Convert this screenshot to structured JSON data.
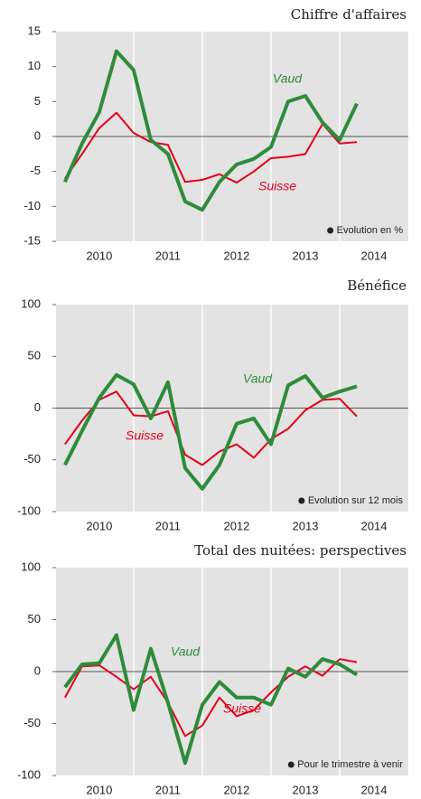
{
  "chart_data": [
    {
      "type": "line",
      "title": "Chiffre d'affaires",
      "x": [
        2010,
        2010.25,
        2010.5,
        2010.75,
        2011,
        2011.25,
        2011.5,
        2011.75,
        2012,
        2012.25,
        2012.5,
        2012.75,
        2013,
        2013.25,
        2013.5,
        2013.75,
        2014,
        2014.25
      ],
      "series": [
        {
          "name": "Vaud",
          "color": "#2e8b3a",
          "values": [
            -6.5,
            -1,
            3.5,
            12.2,
            9.5,
            -0.5,
            -2.5,
            -9.3,
            -10.5,
            -6.5,
            -4,
            -3.2,
            -1.5,
            5,
            5.8,
            2,
            -0.5,
            4.7
          ]
        },
        {
          "name": "Suisse",
          "color": "#e3001b",
          "values": [
            -6,
            -2.5,
            1.2,
            3.4,
            0.5,
            -0.8,
            -1.2,
            -6.5,
            -6.2,
            -5.4,
            -6.6,
            -5,
            -3.1,
            -2.9,
            -2.5,
            1.8,
            -1,
            -0.8
          ]
        }
      ],
      "ylim": [
        -15,
        15
      ],
      "yticks": [
        -15,
        -10,
        -5,
        0,
        5,
        10,
        15
      ],
      "xlim": [
        2009.87,
        2015
      ],
      "xticks": [
        {
          "value": 2010.5,
          "label": "2010"
        },
        {
          "value": 2011.5,
          "label": "2011"
        },
        {
          "value": 2012.5,
          "label": "2012"
        },
        {
          "value": 2013.5,
          "label": "2013"
        },
        {
          "value": 2014.5,
          "label": "2014"
        }
      ],
      "xgrid": [
        2011,
        2012,
        2013,
        2014
      ],
      "note": "Evolution en %"
    },
    {
      "type": "line",
      "title": "Bénéfice",
      "x": [
        2010,
        2010.25,
        2010.5,
        2010.75,
        2011,
        2011.25,
        2011.5,
        2011.75,
        2012,
        2012.25,
        2012.5,
        2012.75,
        2013,
        2013.25,
        2013.5,
        2013.75,
        2014,
        2014.25
      ],
      "series": [
        {
          "name": "Vaud",
          "color": "#2e8b3a",
          "values": [
            -55,
            -22,
            10,
            32,
            23,
            -10,
            25,
            -58,
            -78,
            -55,
            -15,
            -10,
            -35,
            22,
            31,
            10,
            16,
            21
          ]
        },
        {
          "name": "Suisse",
          "color": "#e3001b",
          "values": [
            -35,
            -12,
            8,
            16,
            -7,
            -8,
            -3,
            -45,
            -55,
            -42,
            -35,
            -48,
            -30,
            -20,
            -2,
            8,
            9,
            -8
          ]
        }
      ],
      "ylim": [
        -100,
        100
      ],
      "yticks": [
        -100,
        -50,
        0,
        50,
        100
      ],
      "xlim": [
        2009.87,
        2015
      ],
      "xticks": [
        {
          "value": 2010.5,
          "label": "2010"
        },
        {
          "value": 2011.5,
          "label": "2011"
        },
        {
          "value": 2012.5,
          "label": "2012"
        },
        {
          "value": 2013.5,
          "label": "2013"
        },
        {
          "value": 2014.5,
          "label": "2014"
        }
      ],
      "xgrid": [
        2011,
        2012,
        2013,
        2014
      ],
      "note": "Evolution sur 12 mois"
    },
    {
      "type": "line",
      "title": "Total des nuitées: perspectives",
      "x": [
        2010,
        2010.25,
        2010.5,
        2010.75,
        2011,
        2011.25,
        2011.5,
        2011.75,
        2012,
        2012.25,
        2012.5,
        2012.75,
        2013,
        2013.25,
        2013.5,
        2013.75,
        2014,
        2014.25
      ],
      "series": [
        {
          "name": "Vaud",
          "color": "#2e8b3a",
          "values": [
            -15,
            7,
            8,
            35,
            -37,
            22,
            -30,
            -88,
            -32,
            -10,
            -25,
            -25,
            -32,
            3,
            -5,
            12,
            7,
            -3
          ]
        },
        {
          "name": "Suisse",
          "color": "#e3001b",
          "values": [
            -25,
            5,
            6,
            -5,
            -17,
            -5,
            -30,
            -62,
            -52,
            -25,
            -43,
            -37,
            -20,
            -5,
            5,
            -4,
            12,
            9
          ]
        }
      ],
      "ylim": [
        -100,
        100
      ],
      "yticks": [
        -100,
        -50,
        0,
        50,
        100
      ],
      "xlim": [
        2009.87,
        2015
      ],
      "xticks": [
        {
          "value": 2010.5,
          "label": "2010"
        },
        {
          "value": 2011.5,
          "label": "2011"
        },
        {
          "value": 2012.5,
          "label": "2012"
        },
        {
          "value": 2013.5,
          "label": "2013"
        },
        {
          "value": 2014.5,
          "label": "2014"
        }
      ],
      "xgrid": [
        2011,
        2012,
        2013,
        2014
      ],
      "note": "Pour le trimestre à venir"
    }
  ]
}
